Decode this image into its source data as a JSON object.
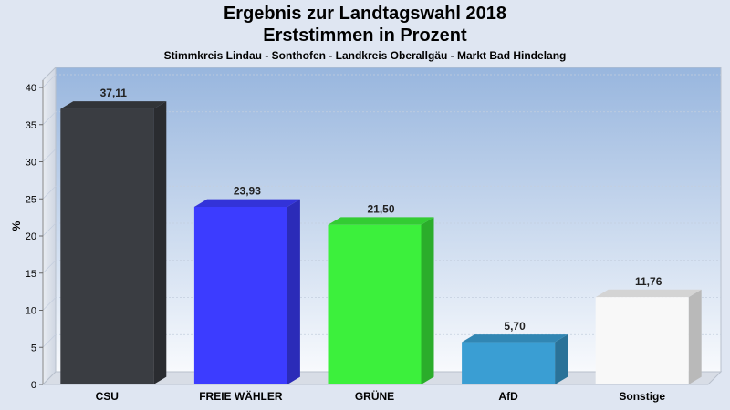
{
  "chart_data": {
    "type": "bar",
    "title": "Ergebnis zur Landtagswahl 2018",
    "subtitle_line": "Erststimmen in Prozent",
    "subtitle": "Stimmkreis Lindau - Sonthofen - Landkreis Oberallgäu - Markt Bad Hindelang",
    "ylabel": "%",
    "xlabel": "",
    "ylim": [
      0,
      40
    ],
    "yticks": [
      0,
      5,
      10,
      15,
      20,
      25,
      30,
      35,
      40
    ],
    "grid": true,
    "categories": [
      "CSU",
      "FREIE WÄHLER",
      "GRÜNE",
      "AfD",
      "Sonstige"
    ],
    "values": [
      37.11,
      23.93,
      21.5,
      5.7,
      11.76
    ],
    "value_labels": [
      "37,11",
      "23,93",
      "21,50",
      "5,70",
      "11,76"
    ],
    "colors": [
      "#3a3d42",
      "#3c3cff",
      "#3cf03c",
      "#3a9ed3",
      "#f8f8f8"
    ]
  }
}
